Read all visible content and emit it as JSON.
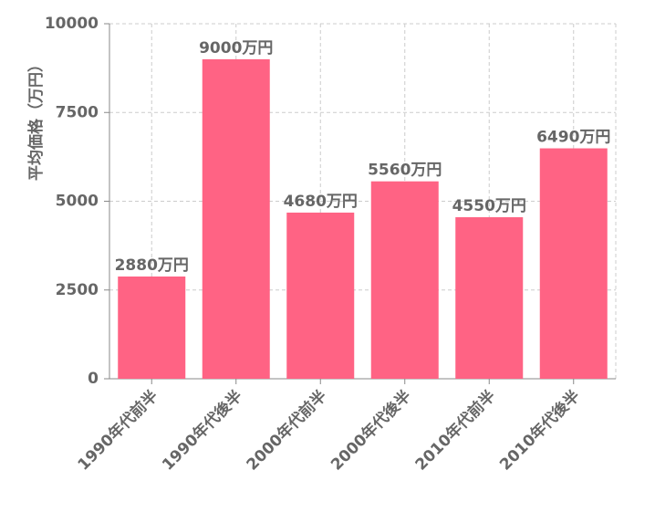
{
  "chart_data": {
    "type": "bar",
    "y_label": "平均価格（万円）",
    "categories": [
      "1990年代前半",
      "1990年代後半",
      "2000年代前半",
      "2000年代後半",
      "2010年代前半",
      "2010年代後半"
    ],
    "values": [
      2880,
      9000,
      4680,
      5560,
      4550,
      6490
    ],
    "value_labels": [
      "2880万円",
      "9000万円",
      "4680万円",
      "5560万円",
      "4550万円",
      "6490万円"
    ],
    "color": "#ff6384",
    "ylim": [
      0,
      10000
    ],
    "yticks": [
      0,
      2500,
      5000,
      7500,
      10000
    ],
    "grid": true
  }
}
